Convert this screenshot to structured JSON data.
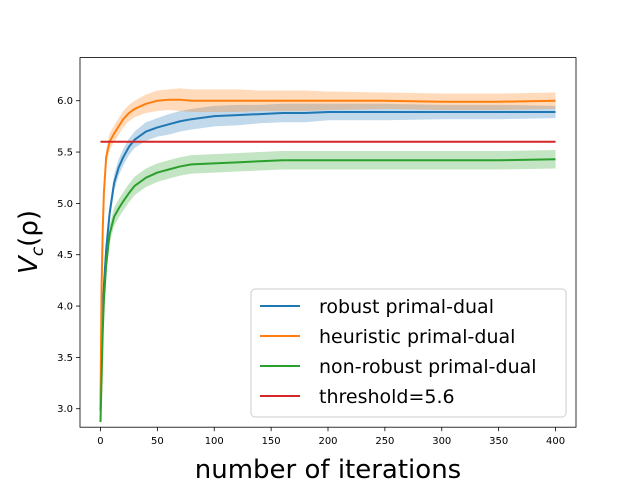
{
  "chart_data": {
    "type": "line",
    "title": "",
    "xlabel": "number of iterations",
    "ylabel": "V_c(ρ)",
    "ylabel_main": "V",
    "ylabel_sub": "c",
    "ylabel_tail": "(ρ)",
    "xlim": [
      -18,
      418
    ],
    "ylim": [
      2.82,
      6.42
    ],
    "xticks": [
      0,
      50,
      100,
      150,
      200,
      250,
      300,
      350,
      400
    ],
    "xtick_labels": [
      "0",
      "50",
      "100",
      "150",
      "200",
      "250",
      "300",
      "350",
      "400"
    ],
    "yticks": [
      3.0,
      3.5,
      4.0,
      4.5,
      5.0,
      5.5,
      6.0
    ],
    "ytick_labels": [
      "3.0",
      "3.5",
      "4.0",
      "4.5",
      "5.0",
      "5.5",
      "6.0"
    ],
    "grid": false,
    "legend_position": "lower-right",
    "x_sample_points": [
      0,
      1,
      2,
      3,
      5,
      8,
      12,
      16,
      20,
      25,
      30,
      40,
      50,
      60,
      70,
      80,
      100,
      120,
      140,
      160,
      180,
      200,
      250,
      300,
      350,
      400
    ],
    "series": [
      {
        "name": "robust primal-dual",
        "color": "#1f77b4",
        "values": [
          2.98,
          3.5,
          3.9,
          4.2,
          4.55,
          4.9,
          5.2,
          5.35,
          5.45,
          5.55,
          5.62,
          5.7,
          5.74,
          5.77,
          5.8,
          5.82,
          5.85,
          5.86,
          5.87,
          5.88,
          5.88,
          5.89,
          5.89,
          5.89,
          5.89,
          5.89
        ],
        "band": [
          0.06,
          0.1,
          0.12,
          0.12,
          0.1,
          0.08,
          0.08,
          0.08,
          0.08,
          0.08,
          0.08,
          0.09,
          0.09,
          0.1,
          0.1,
          0.1,
          0.1,
          0.1,
          0.09,
          0.09,
          0.09,
          0.08,
          0.08,
          0.07,
          0.07,
          0.06
        ]
      },
      {
        "name": "heuristic primal-dual",
        "color": "#ff7f0e",
        "values": [
          3.02,
          4.2,
          4.75,
          5.1,
          5.45,
          5.6,
          5.68,
          5.75,
          5.82,
          5.88,
          5.92,
          5.97,
          6.0,
          6.01,
          6.01,
          6.0,
          6.0,
          6.0,
          6.0,
          6.0,
          6.0,
          6.0,
          6.0,
          5.99,
          5.99,
          6.0
        ],
        "band": [
          0.06,
          0.1,
          0.1,
          0.1,
          0.08,
          0.08,
          0.08,
          0.08,
          0.08,
          0.08,
          0.08,
          0.09,
          0.1,
          0.1,
          0.11,
          0.11,
          0.11,
          0.11,
          0.1,
          0.1,
          0.1,
          0.09,
          0.08,
          0.08,
          0.08,
          0.08
        ]
      },
      {
        "name": "non-robust primal-dual",
        "color": "#2ca02c",
        "values": [
          2.87,
          3.3,
          3.75,
          4.05,
          4.4,
          4.7,
          4.87,
          4.95,
          5.02,
          5.1,
          5.17,
          5.25,
          5.3,
          5.33,
          5.36,
          5.38,
          5.39,
          5.4,
          5.41,
          5.42,
          5.42,
          5.42,
          5.42,
          5.42,
          5.42,
          5.43
        ],
        "band": [
          0.05,
          0.08,
          0.1,
          0.1,
          0.1,
          0.09,
          0.09,
          0.09,
          0.09,
          0.09,
          0.09,
          0.09,
          0.09,
          0.09,
          0.09,
          0.09,
          0.09,
          0.09,
          0.09,
          0.09,
          0.09,
          0.09,
          0.09,
          0.09,
          0.09,
          0.09
        ]
      },
      {
        "name": "threshold=5.6",
        "color": "#d62728",
        "constant": 5.6,
        "x_range": [
          0,
          400
        ]
      }
    ]
  }
}
